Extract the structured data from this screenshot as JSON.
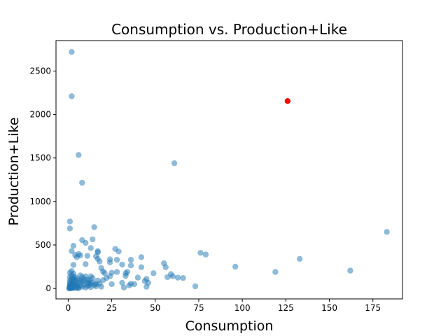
{
  "chart_data": {
    "type": "scatter",
    "title": "Consumption vs. Production+Like",
    "xlabel": "Consumption",
    "ylabel": "Production+Like",
    "xlim": [
      -7,
      192
    ],
    "ylim": [
      -120,
      2850
    ],
    "xticks": [
      0,
      25,
      50,
      75,
      100,
      125,
      150,
      175
    ],
    "yticks": [
      0,
      500,
      1000,
      1500,
      2000,
      2500
    ],
    "grid": false,
    "series": [
      {
        "color": "#1f77b4",
        "opacity": 0.5,
        "points": [
          [
            2,
            2720
          ],
          [
            2,
            2210
          ],
          [
            6,
            1535
          ],
          [
            8,
            1215
          ],
          [
            61,
            1440
          ],
          [
            183,
            650
          ],
          [
            1,
            770
          ],
          [
            1,
            690
          ],
          [
            15,
            705
          ],
          [
            8,
            555
          ],
          [
            10,
            525
          ],
          [
            14,
            565
          ],
          [
            3,
            490
          ],
          [
            2,
            430
          ],
          [
            6,
            395
          ],
          [
            4,
            385
          ],
          [
            7,
            380
          ],
          [
            11,
            375
          ],
          [
            5,
            360
          ],
          [
            13,
            465
          ],
          [
            17,
            430
          ],
          [
            17,
            415
          ],
          [
            27,
            455
          ],
          [
            29,
            425
          ],
          [
            10,
            280
          ],
          [
            3,
            270
          ],
          [
            16,
            370
          ],
          [
            17,
            340
          ],
          [
            18,
            310
          ],
          [
            20,
            195
          ],
          [
            24,
            335
          ],
          [
            24,
            300
          ],
          [
            28,
            330
          ],
          [
            31,
            275
          ],
          [
            36,
            330
          ],
          [
            36,
            265
          ],
          [
            42,
            360
          ],
          [
            42,
            245
          ],
          [
            55,
            290
          ],
          [
            56,
            245
          ],
          [
            76,
            410
          ],
          [
            79,
            390
          ],
          [
            96,
            250
          ],
          [
            119,
            190
          ],
          [
            133,
            340
          ],
          [
            162,
            205
          ],
          [
            59,
            165
          ],
          [
            60,
            140
          ],
          [
            63,
            125
          ],
          [
            66,
            120
          ],
          [
            57,
            130
          ],
          [
            73,
            25
          ],
          [
            49,
            175
          ],
          [
            45,
            110
          ],
          [
            44,
            85
          ],
          [
            46,
            65
          ],
          [
            45,
            20
          ],
          [
            40,
            125
          ],
          [
            34,
            190
          ],
          [
            33,
            175
          ],
          [
            33,
            145
          ],
          [
            31,
            65
          ],
          [
            32,
            10
          ],
          [
            36,
            55
          ],
          [
            38,
            50
          ],
          [
            35,
            35
          ],
          [
            28,
            190
          ],
          [
            25,
            180
          ],
          [
            24,
            140
          ],
          [
            25,
            50
          ],
          [
            21,
            175
          ],
          [
            22,
            120
          ],
          [
            20,
            95
          ],
          [
            19,
            235
          ],
          [
            16,
            50
          ],
          [
            14,
            120
          ],
          [
            13,
            140
          ],
          [
            12,
            95
          ],
          [
            11,
            30
          ],
          [
            10,
            140
          ],
          [
            9,
            110
          ],
          [
            8,
            75
          ],
          [
            7,
            150
          ],
          [
            6,
            90
          ],
          [
            5,
            40
          ],
          [
            4,
            130
          ],
          [
            3,
            170
          ],
          [
            2,
            200
          ],
          [
            1,
            180
          ],
          [
            2,
            150
          ],
          [
            1,
            130
          ],
          [
            2,
            110
          ],
          [
            1,
            95
          ],
          [
            3,
            80
          ],
          [
            1,
            70
          ],
          [
            2,
            60
          ],
          [
            1,
            50
          ],
          [
            3,
            45
          ],
          [
            1,
            40
          ],
          [
            2,
            35
          ],
          [
            1,
            30
          ],
          [
            2,
            25
          ],
          [
            1,
            20
          ],
          [
            3,
            18
          ],
          [
            1,
            15
          ],
          [
            2,
            12
          ],
          [
            1,
            10
          ],
          [
            2,
            8
          ],
          [
            1,
            6
          ],
          [
            3,
            5
          ],
          [
            1,
            4
          ],
          [
            2,
            3
          ],
          [
            1,
            2
          ],
          [
            0.5,
            1
          ],
          [
            4,
            60
          ],
          [
            5,
            25
          ],
          [
            6,
            15
          ],
          [
            7,
            30
          ],
          [
            8,
            20
          ],
          [
            9,
            45
          ],
          [
            10,
            10
          ],
          [
            11,
            60
          ],
          [
            12,
            35
          ],
          [
            13,
            15
          ],
          [
            14,
            70
          ],
          [
            15,
            40
          ],
          [
            16,
            25
          ],
          [
            17,
            90
          ],
          [
            18,
            55
          ],
          [
            19,
            20
          ],
          [
            5,
            110
          ],
          [
            6,
            65
          ],
          [
            7,
            95
          ],
          [
            8,
            130
          ],
          [
            9,
            85
          ],
          [
            11,
            100
          ],
          [
            12,
            70
          ],
          [
            13,
            55
          ],
          [
            3,
            100
          ],
          [
            4,
            90
          ],
          [
            3,
            130
          ],
          [
            4,
            10
          ],
          [
            5,
            5
          ],
          [
            6,
            2
          ],
          [
            3,
            25
          ],
          [
            4,
            35
          ],
          [
            2,
            80
          ],
          [
            2,
            50
          ]
        ]
      },
      {
        "color": "#ff0000",
        "opacity": 1.0,
        "points": [
          [
            126,
            2155
          ]
        ]
      }
    ]
  }
}
